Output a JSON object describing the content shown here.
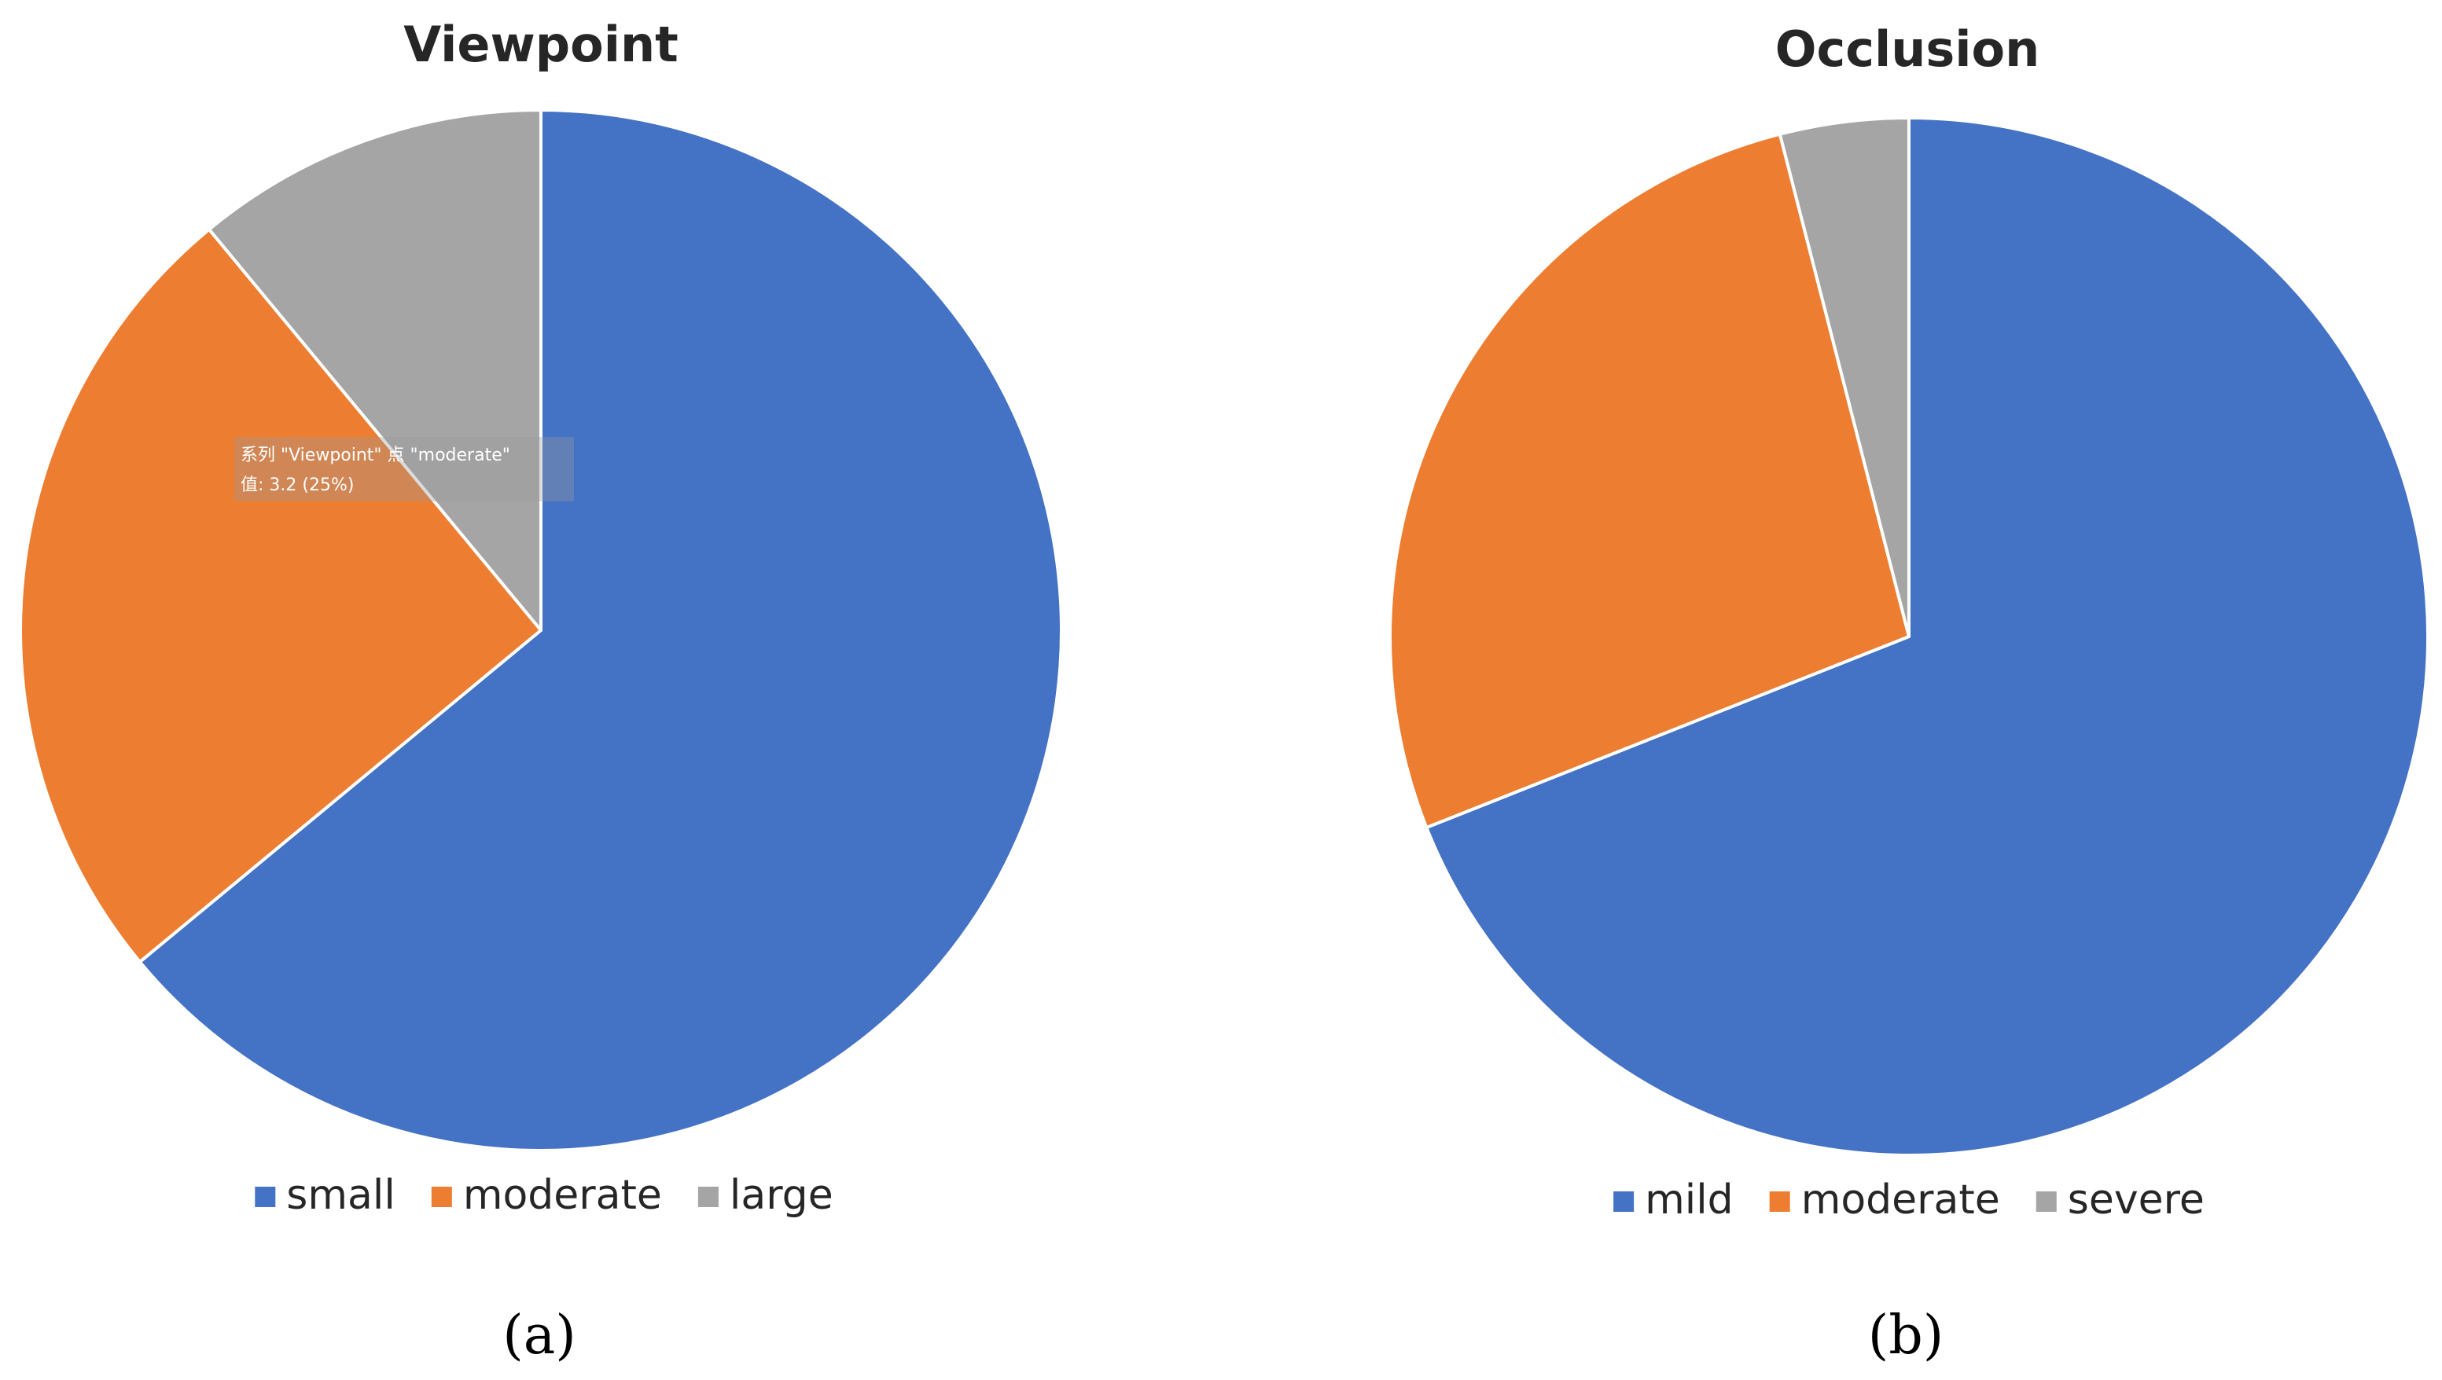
{
  "chart_data": [
    {
      "type": "pie",
      "title": "Viewpoint",
      "panel_label": "(a)",
      "categories": [
        "small",
        "moderate",
        "large"
      ],
      "values": [
        64,
        25,
        11
      ],
      "colors": [
        "#4472C4",
        "#ED7D31",
        "#A5A5A5"
      ],
      "start_angle_deg": 0,
      "direction": "clockwise",
      "legend_position": "bottom",
      "tooltip": {
        "line1": "系列 \"Viewpoint\" 点 \"moderate\"",
        "line2": "值: 3.2 (25%)"
      }
    },
    {
      "type": "pie",
      "title": "Occlusion",
      "panel_label": "(b)",
      "categories": [
        "mild",
        "moderate",
        "severe"
      ],
      "values": [
        69,
        27,
        4
      ],
      "colors": [
        "#4472C4",
        "#ED7D31",
        "#A5A5A5"
      ],
      "start_angle_deg": 0,
      "direction": "clockwise",
      "legend_position": "bottom"
    }
  ]
}
